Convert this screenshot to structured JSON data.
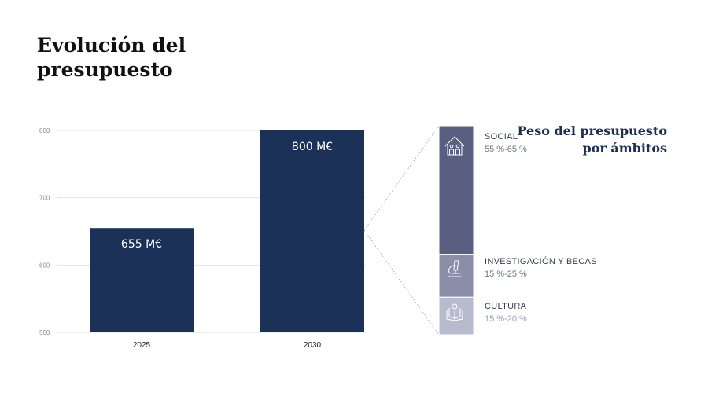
{
  "title": "Evolución del presupuesto",
  "side_title": "Peso del presupuesto por ámbitos",
  "colors": {
    "bar": "#1c3157",
    "grid": "#e3e3e3",
    "axis_text": "#8a8a8a",
    "social": "#585f80",
    "investigacion": "#8a8ea9",
    "cultura": "#b8bbce",
    "connector": "#9aa0a8"
  },
  "chart_data": [
    {
      "type": "bar",
      "categories": [
        "2025",
        "2030"
      ],
      "values": [
        655,
        800
      ],
      "data_labels": [
        "655 M€",
        "800 M€"
      ],
      "ylim": [
        500,
        800
      ],
      "yticks": [
        "500",
        "600",
        "700",
        "800"
      ],
      "grid": true,
      "title": "",
      "xlabel": "",
      "ylabel": ""
    },
    {
      "type": "bar",
      "stacked": true,
      "segments": [
        {
          "name": "SOCIAL",
          "range_label": "55 %-65 %",
          "range": [
            55,
            65
          ],
          "icon": "people-house-icon"
        },
        {
          "name": "INVESTIGACIÓN Y BECAS",
          "range_label": "15 %-25 %",
          "range": [
            15,
            25
          ],
          "icon": "microscope-icon"
        },
        {
          "name": "CULTURA",
          "range_label": "15 %-20 %",
          "range": [
            15,
            20
          ],
          "icon": "book-icon"
        }
      ]
    }
  ]
}
